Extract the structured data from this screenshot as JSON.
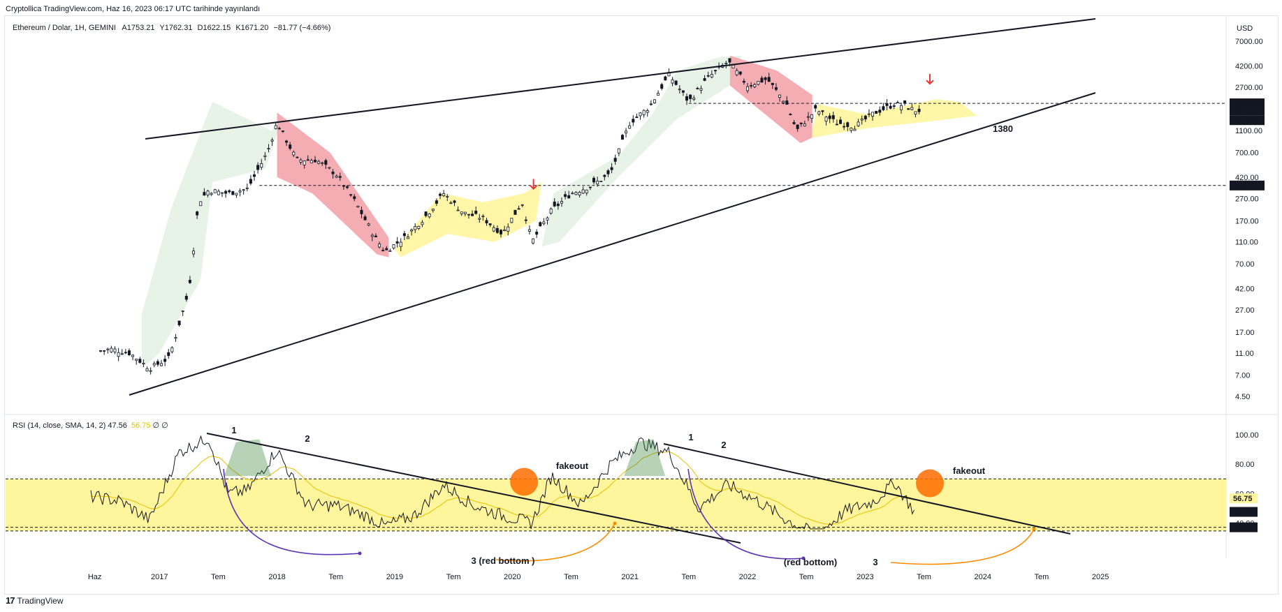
{
  "header": {
    "published": "Cryptollica TradingView.com, Haz 16, 2023 06:17 UTC tarihinde yayınlandı"
  },
  "legend": {
    "symbol": "Ethereum / Dolar, 1H, GEMINI",
    "open": "A1753.21",
    "high": "Y1762.31",
    "low": "D1622.15",
    "close": "K1671.20",
    "change": "−81.77 (−4.66%)"
  },
  "rsi_legend": {
    "label": "RSI (14, close, SMA, 14, 2)",
    "value": "47.56",
    "ma": "56.75",
    "extra": "∅ ∅"
  },
  "footer": {
    "brand": "TradingView",
    "logo": "17"
  },
  "chart_data": [
    {
      "type": "candlestick",
      "title": "Ethereum / Dolar, 1H, GEMINI",
      "scale": "log",
      "currency": "USD",
      "y_ticks": [
        "7000.00",
        "4200.00",
        "2700.00",
        "1600.00",
        "1100.00",
        "700.00",
        "420.00",
        "270.00",
        "170.00",
        "110.00",
        "70.00",
        "42.00",
        "27.00",
        "17.00",
        "11.00",
        "7.00",
        "4.50"
      ],
      "price_badges": [
        "1934.20",
        "1671.20",
        "2d 18h",
        "353.41"
      ],
      "horizontal_levels": [
        1934.2,
        353.41
      ],
      "annotations": [
        "1380"
      ],
      "colors": {
        "up": "#131722",
        "down": "#131722",
        "bull_zone": "#e6f2e6",
        "bear_zone": "#f4a4ac",
        "range_zone": "#fff59d",
        "arrow": "#e53935"
      },
      "series": [
        {
          "x": [
            "2016-06",
            "2016-08",
            "2016-10",
            "2016-12",
            "2017-02",
            "2017-04",
            "2017-05",
            "2017-06",
            "2017-08",
            "2017-10",
            "2017-12",
            "2018-01",
            "2018-03",
            "2018-05",
            "2018-07",
            "2018-09",
            "2018-11",
            "2018-12",
            "2019-02",
            "2019-04",
            "2019-06",
            "2019-08",
            "2019-10",
            "2019-12",
            "2020-02",
            "2020-03",
            "2020-05",
            "2020-07",
            "2020-09",
            "2020-11",
            "2021-01",
            "2021-03",
            "2021-05",
            "2021-07",
            "2021-09",
            "2021-11",
            "2022-01",
            "2022-03",
            "2022-05",
            "2022-06",
            "2022-08",
            "2022-10",
            "2022-12",
            "2023-02",
            "2023-04",
            "2023-05",
            "2023-06"
          ],
          "values": [
            11,
            12,
            11,
            8,
            10,
            40,
            250,
            320,
            300,
            330,
            700,
            1300,
            600,
            600,
            450,
            250,
            120,
            90,
            120,
            180,
            300,
            200,
            180,
            130,
            250,
            110,
            210,
            300,
            350,
            450,
            1300,
            1800,
            3500,
            2000,
            3300,
            4600,
            2800,
            3200,
            1900,
            1100,
            1700,
            1300,
            1200,
            1600,
            1900,
            1850,
            1671
          ]
        }
      ]
    },
    {
      "type": "line",
      "title": "RSI (14, close, SMA, 14, 2)",
      "y_ticks": [
        "100.00",
        "80.00",
        "60.00",
        "40.00"
      ],
      "price_badges": [
        "56.75",
        "47.56",
        "37.08"
      ],
      "band": [
        37.08,
        70
      ],
      "annotations": [
        "1",
        "2",
        "fakeout",
        "3 (red bottom )",
        "1",
        "2",
        "fakeout",
        "(red bottom)",
        "3"
      ],
      "x_ticks": [
        "Haz",
        "2017",
        "Tem",
        "2018",
        "Tem",
        "2019",
        "Tem",
        "2020",
        "Tem",
        "2021",
        "Tem",
        "2022",
        "Tem",
        "2023",
        "Tem",
        "2024",
        "Tem",
        "2025"
      ],
      "colors": {
        "rsi": "#131722",
        "ma": "#e6c000",
        "band": "#fff59d",
        "fakeout": "#ff6d00"
      },
      "series": [
        {
          "name": "RSI",
          "x": [
            "2016-06",
            "2016-09",
            "2016-12",
            "2017-03",
            "2017-06",
            "2017-08",
            "2017-10",
            "2018-01",
            "2018-04",
            "2018-07",
            "2018-10",
            "2018-12",
            "2019-03",
            "2019-06",
            "2019-09",
            "2019-12",
            "2020-03",
            "2020-05",
            "2020-08",
            "2020-11",
            "2021-02",
            "2021-05",
            "2021-08",
            "2021-11",
            "2022-02",
            "2022-05",
            "2022-08",
            "2022-11",
            "2023-02",
            "2023-04",
            "2023-06"
          ],
          "values": [
            58,
            55,
            42,
            88,
            98,
            60,
            62,
            90,
            52,
            52,
            45,
            38,
            45,
            66,
            52,
            45,
            40,
            72,
            52,
            80,
            95,
            88,
            50,
            66,
            55,
            42,
            32,
            48,
            55,
            68,
            47.56
          ]
        }
      ]
    }
  ]
}
